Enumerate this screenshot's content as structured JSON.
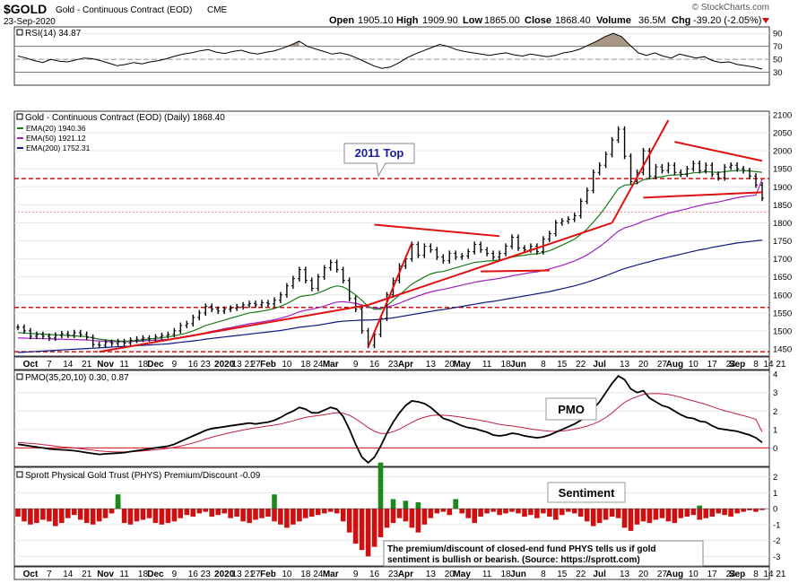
{
  "header": {
    "symbol": "$GOLD",
    "name": "Gold - Continuous Contract (EOD)",
    "exchange": "CME",
    "date": "23-Sep-2020",
    "open_label": "Open",
    "open": "1905.10",
    "high_label": "High",
    "high": "1909.90",
    "low_label": "Low",
    "low": "1865.00",
    "close_label": "Close",
    "close": "1868.40",
    "volume_label": "Volume",
    "volume": "36.5M",
    "chg_label": "Chg",
    "chg": "-39.20 (-2.05%)",
    "watermark": "© StockCharts.com"
  },
  "colors": {
    "price": "#000000",
    "ema20": "#1a7a1a",
    "ema50": "#a020c0",
    "ema200": "#101880",
    "trend": "#e01010",
    "level": "#d01010",
    "rsi_fill": "#9a8570",
    "bar_neg": "#d01010",
    "bar_pos": "#1a8a1a",
    "signal": "#c02040",
    "label_blue": "#1a1aa0"
  },
  "chart_data": [
    {
      "panel": "rsi",
      "type": "line",
      "title": "RSI(14) 34.87",
      "ticks": [
        30,
        50,
        70,
        90
      ],
      "ylim": [
        10,
        100
      ],
      "overbought": 70,
      "oversold": 30,
      "values": [
        55,
        52,
        48,
        45,
        50,
        47,
        46,
        49,
        52,
        51,
        48,
        44,
        40,
        42,
        45,
        43,
        46,
        48,
        51,
        55,
        58,
        60,
        63,
        65,
        61,
        59,
        62,
        64,
        60,
        58,
        61,
        63,
        67,
        72,
        78,
        70,
        66,
        62,
        58,
        60,
        57,
        52,
        46,
        40,
        36,
        38,
        44,
        52,
        58,
        63,
        68,
        73,
        70,
        65,
        62,
        60,
        58,
        56,
        58,
        60,
        57,
        55,
        58,
        56,
        54,
        56,
        60,
        62,
        66,
        72,
        78,
        85,
        90,
        85,
        72,
        60,
        56,
        60,
        55,
        52,
        58,
        55,
        52,
        54,
        48,
        45,
        46,
        42,
        40,
        38,
        34.87
      ]
    },
    {
      "panel": "price",
      "type": "line",
      "title": "Gold - Continuous Contract (EOD) (Daily) 1868.40",
      "legend": [
        {
          "name": "EMA(20) 1940.36",
          "color": "#1a7a1a"
        },
        {
          "name": "EMA(50) 1921.12",
          "color": "#a020c0"
        },
        {
          "name": "EMA(200) 1752.31",
          "color": "#101880"
        }
      ],
      "ticks": [
        1450,
        1500,
        1550,
        1600,
        1650,
        1700,
        1750,
        1800,
        1850,
        1900,
        1950,
        2000,
        2050,
        2100
      ],
      "ylim": [
        1430,
        2110
      ],
      "close": [
        1510,
        1500,
        1485,
        1490,
        1485,
        1480,
        1488,
        1492,
        1488,
        1495,
        1490,
        1482,
        1462,
        1460,
        1468,
        1465,
        1470,
        1466,
        1474,
        1477,
        1480,
        1478,
        1483,
        1487,
        1490,
        1500,
        1515,
        1520,
        1537,
        1550,
        1568,
        1560,
        1555,
        1560,
        1563,
        1567,
        1572,
        1576,
        1572,
        1578,
        1575,
        1585,
        1600,
        1625,
        1645,
        1670,
        1640,
        1618,
        1650,
        1675,
        1690,
        1670,
        1640,
        1590,
        1560,
        1500,
        1460,
        1490,
        1535,
        1600,
        1640,
        1680,
        1700,
        1740,
        1710,
        1735,
        1725,
        1705,
        1695,
        1715,
        1705,
        1708,
        1720,
        1740,
        1725,
        1715,
        1705,
        1715,
        1735,
        1760,
        1730,
        1725,
        1735,
        1720,
        1755,
        1770,
        1800,
        1805,
        1810,
        1820,
        1860,
        1890,
        1940,
        1960,
        1990,
        2030,
        2060,
        1985,
        1915,
        1940,
        2000,
        1930,
        1955,
        1945,
        1960,
        1940,
        1935,
        1950,
        1965,
        1945,
        1960,
        1935,
        1925,
        1955,
        1960,
        1950,
        1945,
        1930,
        1905,
        1868.4
      ],
      "ema20": [
        1495,
        1494,
        1493,
        1492,
        1491,
        1490,
        1489,
        1488,
        1487,
        1486,
        1485,
        1484,
        1480,
        1477,
        1475,
        1473,
        1472,
        1471,
        1472,
        1473,
        1475,
        1477,
        1479,
        1481,
        1483,
        1486,
        1490,
        1494,
        1500,
        1507,
        1515,
        1520,
        1525,
        1530,
        1535,
        1540,
        1545,
        1550,
        1552,
        1555,
        1558,
        1562,
        1568,
        1576,
        1585,
        1595,
        1598,
        1600,
        1605,
        1612,
        1620,
        1625,
        1622,
        1612,
        1600,
        1585,
        1568,
        1560,
        1560,
        1570,
        1585,
        1600,
        1615,
        1630,
        1640,
        1650,
        1658,
        1663,
        1665,
        1670,
        1675,
        1680,
        1685,
        1690,
        1692,
        1694,
        1695,
        1697,
        1700,
        1705,
        1708,
        1710,
        1713,
        1714,
        1718,
        1723,
        1730,
        1738,
        1746,
        1755,
        1768,
        1783,
        1802,
        1822,
        1845,
        1870,
        1895,
        1905,
        1906,
        1910,
        1920,
        1922,
        1926,
        1928,
        1932,
        1933,
        1934,
        1936,
        1939,
        1940,
        1942,
        1941,
        1940,
        1942,
        1944,
        1945,
        1945,
        1944,
        1942,
        1940.36
      ],
      "ema50": [
        1480,
        1480,
        1479,
        1479,
        1478,
        1478,
        1477,
        1477,
        1476,
        1476,
        1475,
        1475,
        1473,
        1472,
        1471,
        1470,
        1470,
        1470,
        1470,
        1471,
        1472,
        1473,
        1474,
        1475,
        1476,
        1478,
        1480,
        1483,
        1486,
        1490,
        1495,
        1499,
        1502,
        1506,
        1509,
        1513,
        1516,
        1520,
        1522,
        1525,
        1528,
        1531,
        1535,
        1540,
        1546,
        1553,
        1557,
        1560,
        1564,
        1569,
        1575,
        1580,
        1581,
        1579,
        1576,
        1572,
        1566,
        1563,
        1563,
        1566,
        1571,
        1577,
        1584,
        1591,
        1597,
        1603,
        1608,
        1612,
        1615,
        1619,
        1623,
        1627,
        1631,
        1635,
        1638,
        1641,
        1643,
        1646,
        1649,
        1653,
        1656,
        1659,
        1662,
        1664,
        1668,
        1672,
        1677,
        1682,
        1688,
        1694,
        1702,
        1711,
        1722,
        1734,
        1747,
        1762,
        1777,
        1786,
        1791,
        1797,
        1805,
        1810,
        1816,
        1821,
        1827,
        1831,
        1835,
        1839,
        1844,
        1848,
        1852,
        1855,
        1858,
        1862,
        1866,
        1870,
        1873,
        1875,
        1877,
        1921.12
      ],
      "ema200": [
        1440,
        1441,
        1442,
        1443,
        1444,
        1445,
        1446,
        1447,
        1448,
        1449,
        1450,
        1451,
        1452,
        1453,
        1454,
        1455,
        1456,
        1457,
        1458,
        1459,
        1460,
        1461,
        1462,
        1463,
        1464,
        1466,
        1468,
        1470,
        1472,
        1474,
        1477,
        1479,
        1481,
        1483,
        1485,
        1487,
        1489,
        1491,
        1493,
        1495,
        1497,
        1499,
        1501,
        1504,
        1507,
        1510,
        1512,
        1514,
        1516,
        1519,
        1522,
        1525,
        1527,
        1528,
        1529,
        1530,
        1530,
        1531,
        1532,
        1534,
        1536,
        1539,
        1542,
        1545,
        1548,
        1551,
        1554,
        1557,
        1559,
        1562,
        1565,
        1568,
        1571,
        1574,
        1577,
        1580,
        1582,
        1585,
        1588,
        1591,
        1594,
        1597,
        1600,
        1603,
        1606,
        1609,
        1613,
        1617,
        1621,
        1625,
        1630,
        1635,
        1641,
        1647,
        1653,
        1660,
        1667,
        1673,
        1678,
        1683,
        1688,
        1692,
        1697,
        1701,
        1705,
        1709,
        1713,
        1717,
        1721,
        1725,
        1728,
        1732,
        1735,
        1738,
        1741,
        1744,
        1746,
        1748,
        1750,
        1752.31
      ],
      "annotations": [
        {
          "text": "2011 Top",
          "level": 1923
        },
        {
          "level": 1565
        },
        {
          "level": 1442
        },
        {
          "level": 1830
        }
      ]
    },
    {
      "panel": "pmo",
      "type": "line",
      "title": "PMO(35,20,10) 0.30, 0.87",
      "label": "PMO",
      "ticks": [
        0,
        1,
        2,
        3,
        4
      ],
      "ylim": [
        -1,
        4.2
      ],
      "pmo": [
        0.2,
        0.15,
        0.1,
        0.05,
        0.0,
        -0.05,
        -0.08,
        -0.1,
        -0.12,
        -0.15,
        -0.2,
        -0.25,
        -0.3,
        -0.35,
        -0.32,
        -0.3,
        -0.28,
        -0.25,
        -0.2,
        -0.15,
        -0.1,
        -0.05,
        0.0,
        0.05,
        0.1,
        0.2,
        0.35,
        0.5,
        0.65,
        0.8,
        0.95,
        1.05,
        1.1,
        1.15,
        1.2,
        1.25,
        1.3,
        1.35,
        1.3,
        1.35,
        1.4,
        1.5,
        1.65,
        1.85,
        2.0,
        2.2,
        2.1,
        1.9,
        1.9,
        2.05,
        2.2,
        2.1,
        1.7,
        1.0,
        0.2,
        -0.5,
        -0.8,
        -0.5,
        0.1,
        0.8,
        1.4,
        1.9,
        2.3,
        2.55,
        2.5,
        2.4,
        2.2,
        1.9,
        1.6,
        1.5,
        1.35,
        1.2,
        1.1,
        1.05,
        0.95,
        0.85,
        0.7,
        0.65,
        0.7,
        0.8,
        0.75,
        0.65,
        0.6,
        0.55,
        0.6,
        0.7,
        0.85,
        1.0,
        1.15,
        1.3,
        1.5,
        1.75,
        2.1,
        2.5,
        3.0,
        3.5,
        3.9,
        3.7,
        3.2,
        3.0,
        3.1,
        2.7,
        2.5,
        2.3,
        2.2,
        2.0,
        1.8,
        1.65,
        1.6,
        1.45,
        1.4,
        1.2,
        1.05,
        1.0,
        0.95,
        0.9,
        0.8,
        0.7,
        0.55,
        0.3
      ],
      "signal": [
        0.3,
        0.28,
        0.25,
        0.22,
        0.18,
        0.14,
        0.1,
        0.06,
        0.03,
        0.0,
        -0.04,
        -0.08,
        -0.12,
        -0.16,
        -0.19,
        -0.21,
        -0.22,
        -0.22,
        -0.21,
        -0.19,
        -0.16,
        -0.13,
        -0.1,
        -0.06,
        -0.02,
        0.03,
        0.1,
        0.18,
        0.27,
        0.37,
        0.48,
        0.58,
        0.67,
        0.75,
        0.83,
        0.9,
        0.97,
        1.04,
        1.09,
        1.14,
        1.19,
        1.24,
        1.3,
        1.38,
        1.47,
        1.57,
        1.66,
        1.71,
        1.75,
        1.8,
        1.86,
        1.91,
        1.88,
        1.77,
        1.58,
        1.35,
        1.1,
        0.9,
        0.79,
        0.79,
        0.88,
        1.02,
        1.2,
        1.39,
        1.55,
        1.67,
        1.75,
        1.78,
        1.77,
        1.75,
        1.71,
        1.66,
        1.6,
        1.55,
        1.49,
        1.43,
        1.35,
        1.28,
        1.23,
        1.19,
        1.14,
        1.09,
        1.03,
        0.98,
        0.94,
        0.91,
        0.9,
        0.92,
        0.96,
        1.02,
        1.09,
        1.18,
        1.3,
        1.45,
        1.65,
        1.9,
        2.2,
        2.47,
        2.65,
        2.78,
        2.9,
        2.94,
        2.95,
        2.93,
        2.9,
        2.83,
        2.74,
        2.64,
        2.55,
        2.45,
        2.36,
        2.24,
        2.12,
        2.02,
        1.93,
        1.84,
        1.75,
        1.66,
        1.55,
        0.87
      ]
    },
    {
      "panel": "sentiment",
      "type": "bar",
      "title": "Sprott Physical Gold Trust (PHYS) Premium/Discount -0.09",
      "label": "Sentiment",
      "note": "The premium/discount of closed-end fund PHYS tells us if gold sentiment is bullish or bearish. (Source: https://sprott.com)",
      "ticks": [
        -3,
        -2,
        -1,
        0,
        1,
        2
      ],
      "ylim": [
        -3.6,
        2.6
      ],
      "values": [
        -0.5,
        -0.8,
        -1.0,
        -0.9,
        -0.7,
        -0.8,
        -1.1,
        -0.9,
        -0.6,
        -0.4,
        -0.7,
        -0.9,
        -1.0,
        -0.8,
        -0.6,
        -0.3,
        0.6,
        -0.9,
        -1.0,
        -0.8,
        -0.7,
        -0.6,
        -0.9,
        -1.0,
        -0.9,
        -0.8,
        -0.6,
        -0.4,
        -0.5,
        -0.3,
        -0.2,
        -0.5,
        -0.4,
        -0.3,
        -0.6,
        -0.5,
        -0.8,
        -0.9,
        -0.7,
        -0.6,
        -0.5,
        -0.8,
        -1.0,
        -1.2,
        -1.0,
        -0.8,
        -0.6,
        -0.5,
        -0.4,
        -0.3,
        -0.2,
        -0.3,
        -0.8,
        -1.5,
        -2.2,
        -2.6,
        -3.0,
        -2.4,
        -1.8,
        -1.2,
        -0.9,
        -0.6,
        -0.8,
        -1.2,
        -1.5,
        -1.0,
        -0.6,
        -0.3,
        -0.2,
        -0.4,
        0.2,
        -0.3,
        -0.6,
        -0.9,
        -0.5,
        -0.3,
        -0.2,
        -0.4,
        -0.3,
        -0.2,
        -0.3,
        -0.5,
        -0.4,
        -0.6,
        -0.3,
        -0.5,
        -0.7,
        -0.4,
        -0.2,
        -0.3,
        -0.5,
        -0.8,
        -1.1,
        -0.9,
        -0.7,
        -0.5,
        -0.6,
        -1.2,
        -1.4,
        -1.0,
        -0.8,
        -0.9,
        -0.7,
        -0.6,
        -0.8,
        -0.9,
        -0.6,
        -0.5,
        -0.4,
        -0.7,
        -0.6,
        -0.5,
        -0.3,
        -0.4,
        -0.5,
        -0.3,
        -0.2,
        -0.1,
        -0.2,
        -0.09
      ],
      "positive_spikes": [
        [
          16,
          0.9
        ],
        [
          70,
          0.6
        ],
        [
          41,
          0.9
        ],
        [
          58,
          2.9
        ],
        [
          60,
          0.6
        ],
        [
          62,
          0.5
        ],
        [
          64,
          0.4
        ],
        [
          109,
          0.2
        ]
      ]
    }
  ],
  "x_axis": {
    "labels": [
      "Oct",
      "7",
      "14",
      "21",
      "Nov",
      "11",
      "18",
      "Dec",
      "9",
      "16",
      "23",
      "2020",
      "13",
      "21",
      "27",
      "Feb",
      "10",
      "18",
      "24",
      "Mar",
      "9",
      "16",
      "23",
      "Apr",
      "13",
      "20",
      "May",
      "11",
      "18",
      "Jun",
      "8",
      "15",
      "22",
      "Jul",
      "13",
      "20",
      "27",
      "Aug",
      "10",
      "17",
      "24",
      "Sep",
      "8",
      "14",
      "21"
    ],
    "bold": [
      "Oct",
      "Nov",
      "Dec",
      "2020",
      "Feb",
      "Mar",
      "Apr",
      "May",
      "Jun",
      "Jul",
      "Aug",
      "Sep"
    ],
    "index": [
      2,
      5,
      8,
      11,
      14,
      17,
      20,
      22,
      25,
      28,
      30,
      33,
      35,
      37,
      38,
      40,
      43,
      46,
      48,
      50,
      54,
      57,
      60,
      62,
      66,
      69,
      71,
      75,
      78,
      80,
      84,
      87,
      90,
      93,
      97,
      100,
      103,
      105,
      108,
      111,
      114,
      115,
      118,
      120,
      122
    ]
  }
}
